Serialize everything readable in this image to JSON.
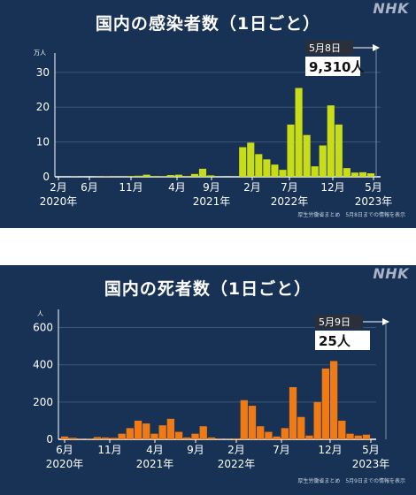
{
  "chart_data": [
    {
      "type": "bar",
      "title": "国内の感染者数（1日ごと）",
      "ylabel": "万人",
      "yticks": [
        "0",
        "10",
        "20",
        "30"
      ],
      "ylim": [
        0,
        33
      ],
      "color": "#c8dc1a",
      "x_tick_labels": [
        {
          "month": "2月",
          "year": "2020年"
        },
        {
          "month": "6月",
          "year": ""
        },
        {
          "month": "11月",
          "year": ""
        },
        {
          "month": "4月",
          "year": ""
        },
        {
          "month": "9月",
          "year": "2021年"
        },
        {
          "month": "2月",
          "year": ""
        },
        {
          "month": "7月",
          "year": "2022年"
        },
        {
          "month": "12月",
          "year": ""
        },
        {
          "month": "5月",
          "year": "2023年"
        }
      ],
      "x": [
        "2020-02",
        "2020-03",
        "2020-04",
        "2020-05",
        "2020-06",
        "2020-07",
        "2020-08",
        "2020-09",
        "2020-10",
        "2020-11",
        "2020-12",
        "2021-01",
        "2021-02",
        "2021-03",
        "2021-04",
        "2021-05",
        "2021-06",
        "2021-07",
        "2021-08",
        "2021-09",
        "2021-10",
        "2021-11",
        "2021-12",
        "2022-01",
        "2022-02",
        "2022-03",
        "2022-04",
        "2022-05",
        "2022-06",
        "2022-07",
        "2022-08",
        "2022-09",
        "2022-10",
        "2022-11",
        "2022-12",
        "2023-01",
        "2023-02",
        "2023-03",
        "2023-04",
        "2023-05"
      ],
      "values": [
        0,
        0,
        0.05,
        0,
        0,
        0.05,
        0.1,
        0.05,
        0.05,
        0.2,
        0.3,
        0.6,
        0.2,
        0.15,
        0.5,
        0.6,
        0.2,
        0.8,
        2.3,
        0.4,
        0.05,
        0.02,
        0.05,
        8.5,
        9.8,
        6.5,
        5.0,
        3.5,
        2.0,
        15.0,
        25.5,
        12.0,
        3.0,
        9.0,
        20.5,
        15.0,
        2.5,
        1.2,
        1.3,
        1.0
      ],
      "callout": {
        "date": "5月8日",
        "value": "9,310人"
      },
      "source": "厚生労働省まとめ　5月8日までの情報を表示"
    },
    {
      "type": "bar",
      "title": "国内の死者数（1日ごと）",
      "ylabel": "人",
      "yticks": [
        "0",
        "200",
        "400",
        "600"
      ],
      "ylim": [
        0,
        650
      ],
      "color": "#f07a14",
      "x_tick_labels": [
        {
          "month": "6月",
          "year": "2020年"
        },
        {
          "month": "11月",
          "year": ""
        },
        {
          "month": "4月",
          "year": "2021年"
        },
        {
          "month": "9月",
          "year": ""
        },
        {
          "month": "2月",
          "year": "2022年"
        },
        {
          "month": "7月",
          "year": ""
        },
        {
          "month": "12月",
          "year": ""
        },
        {
          "month": "5月",
          "year": "2023年"
        }
      ],
      "x": [
        "2020-04",
        "2020-05",
        "2020-06",
        "2020-07",
        "2020-08",
        "2020-09",
        "2020-10",
        "2020-11",
        "2020-12",
        "2021-01",
        "2021-02",
        "2021-03",
        "2021-04",
        "2021-05",
        "2021-06",
        "2021-07",
        "2021-08",
        "2021-09",
        "2021-10",
        "2021-11",
        "2021-12",
        "2022-01",
        "2022-02",
        "2022-03",
        "2022-04",
        "2022-05",
        "2022-06",
        "2022-07",
        "2022-08",
        "2022-09",
        "2022-10",
        "2022-11",
        "2022-12",
        "2023-01",
        "2023-02",
        "2023-03",
        "2023-04",
        "2023-05"
      ],
      "values": [
        15,
        8,
        2,
        3,
        12,
        10,
        8,
        30,
        60,
        100,
        85,
        30,
        75,
        110,
        40,
        10,
        30,
        70,
        10,
        2,
        2,
        5,
        210,
        180,
        70,
        40,
        15,
        60,
        280,
        120,
        20,
        200,
        380,
        420,
        100,
        30,
        20,
        25
      ],
      "callout": {
        "date": "5月9日",
        "value": "25人"
      },
      "source": "厚生労働省まとめ　5月9日までの情報を表示"
    }
  ],
  "brand": "NHK"
}
